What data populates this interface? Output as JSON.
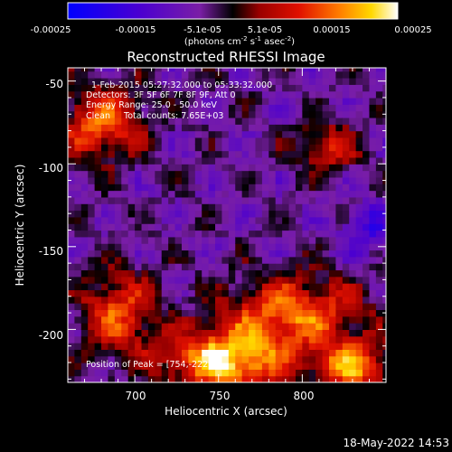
{
  "colorbar": {
    "ticks": [
      "-0.00025",
      "-0.00015",
      "-5.1e-05",
      "5.1e-05",
      "0.00015",
      "0.00025"
    ],
    "units_main": "(photons cm",
    "units_sup1": "-2",
    "units_mid1": " s",
    "units_sup2": "-1",
    "units_mid2": " asec",
    "units_sup3": "-2",
    "units_end": ")",
    "range": [
      -0.00025,
      0.00025
    ],
    "colors": [
      "#0000ff",
      "#5a00c8",
      "#7a1ea6",
      "#000000",
      "#cc0000",
      "#ff6a00",
      "#ffd400",
      "#ffffff"
    ]
  },
  "chart_data": {
    "type": "heatmap",
    "title": "Reconstructed RHESSI Image",
    "xlabel": "Heliocentric X (arcsec)",
    "ylabel": "Heliocentric Y (arcsec)",
    "xlim": [
      660,
      850
    ],
    "ylim": [
      -232,
      -42
    ],
    "xticks": [
      "700",
      "750",
      "800"
    ],
    "yticks": [
      "-50",
      "-100",
      "-150",
      "-200"
    ],
    "annotations": [
      "1-Feb-2015 05:27:32.000 to 05:33:32.000",
      "Detectors: 3F 5F 6F 7F 8F 9F, Att 0",
      "Energy Range: 25.0 - 50.0 keV",
      "Clean     Total counts: 7.65E+03"
    ],
    "peak_label": "Position of Peak = [754,-222]",
    "peak": [
      754,
      -222
    ]
  },
  "footer": {
    "timestamp": "18-May-2022 14:53"
  }
}
